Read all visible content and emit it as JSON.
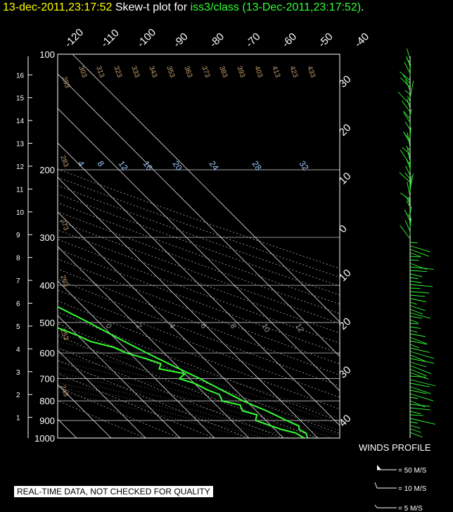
{
  "title": {
    "datetime": "13-dec-2011,23:17:52",
    "label": "Skew-t plot for",
    "source": "iss3/class (13-Dec-2011,23:17:52)",
    "period": "."
  },
  "footer": "REAL-TIME DATA, NOT CHECKED FOR QUALITY",
  "colors": {
    "sounding": "#33ff33",
    "grid": "#ffffff",
    "dry_adiabat": "#c8a070",
    "mixing": "#a0c8ff",
    "title": "#ffff00"
  },
  "chart_data": {
    "type": "line",
    "pressure_levels": [
      100,
      200,
      300,
      400,
      500,
      600,
      700,
      800,
      900,
      1000
    ],
    "height_km": [
      1,
      2,
      3,
      4,
      5,
      6,
      7,
      8,
      9,
      10,
      11,
      12,
      13,
      14,
      15,
      16
    ],
    "temp_top": [
      -120,
      -110,
      -100,
      -90,
      -80,
      -70,
      -60,
      -50,
      -40
    ],
    "temp_right": [
      30,
      20,
      10,
      0,
      10,
      20,
      30,
      40
    ],
    "dry_adiabat_labels": [
      "293",
      "303",
      "313",
      "323",
      "333",
      "343",
      "353",
      "363",
      "373",
      "383",
      "393",
      "403",
      "413",
      "423",
      "433",
      "283",
      "273",
      "263",
      "253",
      "243"
    ],
    "mixing_ratio_labels": [
      "4",
      "8",
      "12",
      "16",
      "20",
      "24",
      "28",
      "32"
    ],
    "moist_labels": [
      "0",
      "2",
      "4",
      "6",
      "8",
      "10",
      "12"
    ],
    "wind_legend": {
      "title": "WINDS PROFILE",
      "items": [
        "= 50 M/S",
        "= 10 M/S",
        "= 5 M/S"
      ]
    },
    "temperature_profile": [
      {
        "p": 1000,
        "t": 7
      },
      {
        "p": 970,
        "t": 8
      },
      {
        "p": 950,
        "t": 7
      },
      {
        "p": 930,
        "t": 8
      },
      {
        "p": 900,
        "t": 6
      },
      {
        "p": 850,
        "t": 3
      },
      {
        "p": 800,
        "t": -1
      },
      {
        "p": 750,
        "t": -4
      },
      {
        "p": 700,
        "t": -7
      },
      {
        "p": 650,
        "t": -11
      },
      {
        "p": 600,
        "t": -15
      },
      {
        "p": 550,
        "t": -19
      },
      {
        "p": 500,
        "t": -23
      },
      {
        "p": 450,
        "t": -28
      },
      {
        "p": 400,
        "t": -33
      },
      {
        "p": 350,
        "t": -39
      },
      {
        "p": 300,
        "t": -45
      },
      {
        "p": 270,
        "t": -49
      },
      {
        "p": 250,
        "t": -52
      },
      {
        "p": 220,
        "t": -55
      },
      {
        "p": 200,
        "t": -58
      },
      {
        "p": 180,
        "t": -59
      },
      {
        "p": 160,
        "t": -60
      },
      {
        "p": 140,
        "t": -60
      },
      {
        "p": 120,
        "t": -62
      },
      {
        "p": 100,
        "t": -63
      }
    ],
    "dewpoint_profile": [
      {
        "p": 1000,
        "t": 6
      },
      {
        "p": 970,
        "t": 5
      },
      {
        "p": 950,
        "t": 2
      },
      {
        "p": 930,
        "t": 0
      },
      {
        "p": 900,
        "t": -3
      },
      {
        "p": 870,
        "t": -1
      },
      {
        "p": 850,
        "t": -4
      },
      {
        "p": 820,
        "t": -3
      },
      {
        "p": 800,
        "t": -7
      },
      {
        "p": 770,
        "t": -6
      },
      {
        "p": 750,
        "t": -8
      },
      {
        "p": 720,
        "t": -10
      },
      {
        "p": 700,
        "t": -13
      },
      {
        "p": 680,
        "t": -10
      },
      {
        "p": 660,
        "t": -16
      },
      {
        "p": 640,
        "t": -14
      },
      {
        "p": 620,
        "t": -17
      },
      {
        "p": 600,
        "t": -21
      },
      {
        "p": 580,
        "t": -23
      },
      {
        "p": 560,
        "t": -28
      },
      {
        "p": 540,
        "t": -30
      },
      {
        "p": 520,
        "t": -33
      },
      {
        "p": 500,
        "t": -36
      },
      {
        "p": 480,
        "t": -39
      },
      {
        "p": 460,
        "t": -42
      },
      {
        "p": 440,
        "t": -44
      },
      {
        "p": 420,
        "t": -47
      },
      {
        "p": 410,
        "t": -50
      },
      {
        "p": 400,
        "t": -53
      },
      {
        "p": 390,
        "t": -49
      },
      {
        "p": 380,
        "t": -50
      },
      {
        "p": 370,
        "t": -47
      },
      {
        "p": 360,
        "t": -51
      },
      {
        "p": 350,
        "t": -49
      },
      {
        "p": 340,
        "t": -50
      },
      {
        "p": 330,
        "t": -48
      },
      {
        "p": 320,
        "t": -51
      },
      {
        "p": 310,
        "t": -50
      },
      {
        "p": 300,
        "t": -53
      },
      {
        "p": 290,
        "t": -55
      },
      {
        "p": 280,
        "t": -56
      },
      {
        "p": 270,
        "t": -58
      },
      {
        "p": 260,
        "t": -57
      },
      {
        "p": 250,
        "t": -60
      },
      {
        "p": 240,
        "t": -63
      },
      {
        "p": 230,
        "t": -64
      },
      {
        "p": 220,
        "t": -66
      },
      {
        "p": 210,
        "t": -67
      },
      {
        "p": 200,
        "t": -70
      },
      {
        "p": 190,
        "t": -70
      },
      {
        "p": 180,
        "t": -72
      },
      {
        "p": 160,
        "t": -75
      },
      {
        "p": 140,
        "t": -79
      },
      {
        "p": 120,
        "t": -83
      },
      {
        "p": 110,
        "t": -85
      },
      {
        "p": 100,
        "t": -86
      }
    ]
  }
}
